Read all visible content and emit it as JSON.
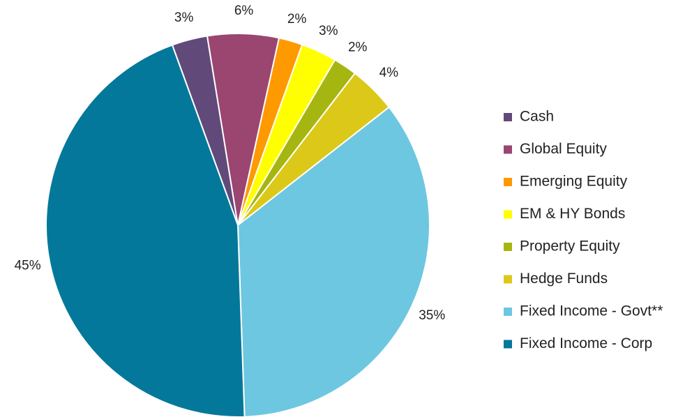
{
  "chart_data": {
    "type": "pie",
    "categories": [
      "Cash",
      "Global Equity",
      "Emerging Equity",
      "EM & HY Bonds",
      "Property Equity",
      "Hedge Funds",
      "Fixed Income - Govt**",
      "Fixed Income - Corp"
    ],
    "values": [
      3,
      6,
      2,
      3,
      2,
      4,
      35,
      45
    ],
    "value_labels": [
      "3%",
      "6%",
      "2%",
      "3%",
      "2%",
      "4%",
      "35%",
      "45%"
    ],
    "colors": [
      "#614a79",
      "#9b4571",
      "#ff9900",
      "#ffff00",
      "#a5b611",
      "#dcc818",
      "#6dc7e0",
      "#04789a"
    ],
    "legend": "right"
  }
}
